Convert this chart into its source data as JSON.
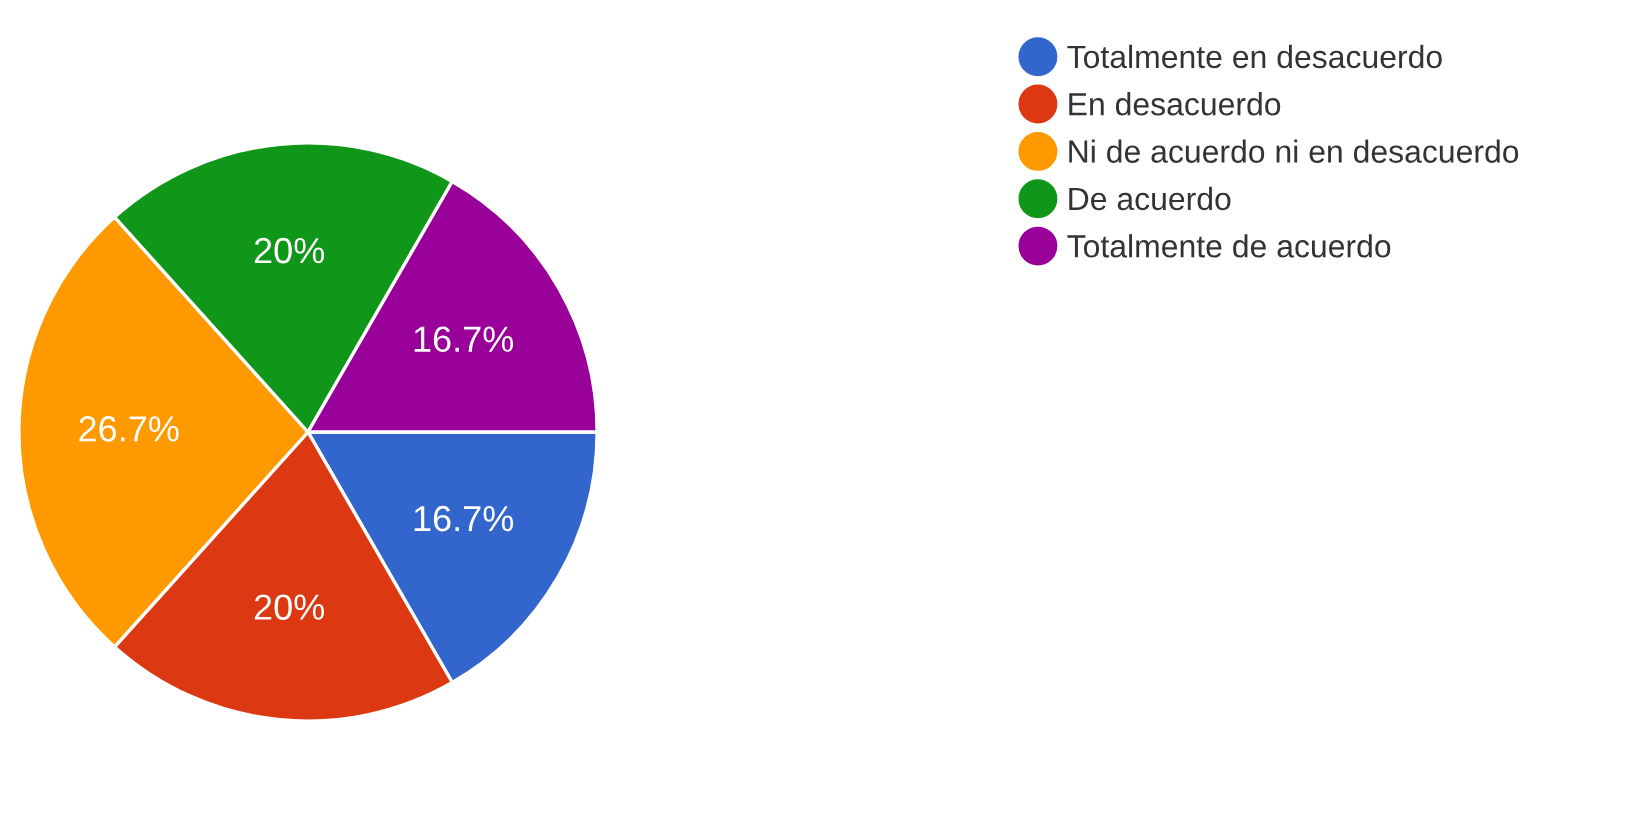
{
  "chart_data": {
    "type": "pie",
    "categories": [
      "Totalmente en desacuerdo",
      "En desacuerdo",
      "Ni de acuerdo ni en desacuerdo",
      "De acuerdo",
      "Totalmente de acuerdo"
    ],
    "values": [
      16.7,
      20,
      26.7,
      20,
      16.7
    ],
    "colors": [
      "#3366cc",
      "#dc3912",
      "#ff9900",
      "#109618",
      "#990099"
    ],
    "value_labels": [
      "16.7%",
      "20%",
      "26.7%",
      "20%",
      "16.7%"
    ],
    "legend": "right"
  }
}
